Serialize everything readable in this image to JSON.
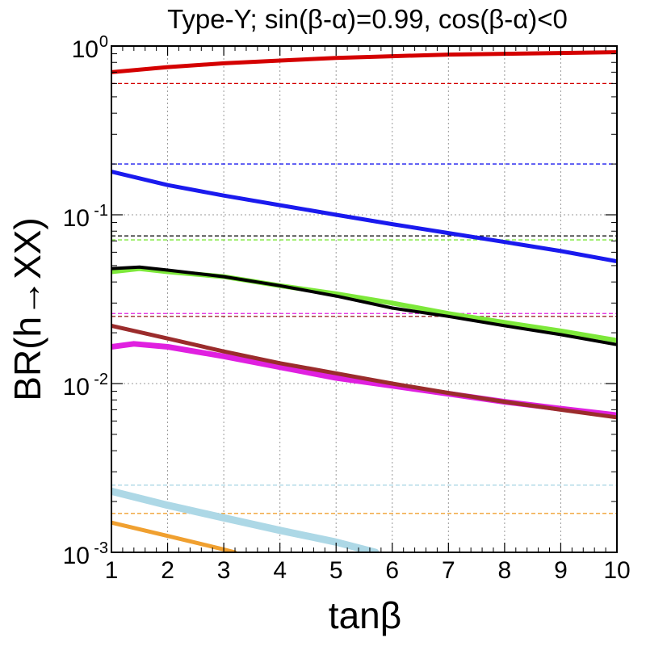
{
  "chart_data": {
    "type": "scatter",
    "title": "Type-Y; sin(β-α)=0.99, cos(β-α)<0",
    "xlabel": "tanβ",
    "ylabel": "BR(h→XX)",
    "xlim": [
      1,
      10
    ],
    "ylim": [
      0.001,
      1
    ],
    "yscale": "log",
    "grid": true,
    "x_ticks": [
      "1",
      "2",
      "3",
      "4",
      "5",
      "6",
      "7",
      "8",
      "9",
      "10"
    ],
    "y_ticks": [
      {
        "base": "10",
        "exp": "-3"
      },
      {
        "base": "10",
        "exp": "-2"
      },
      {
        "base": "10",
        "exp": "-1"
      },
      {
        "base": "10",
        "exp": "0"
      }
    ],
    "series": [
      {
        "name": "red",
        "color": "#d40000",
        "x": [
          1,
          2,
          3,
          4,
          5,
          6,
          7,
          8,
          9,
          10
        ],
        "y": [
          0.7,
          0.75,
          0.79,
          0.82,
          0.85,
          0.87,
          0.89,
          0.9,
          0.91,
          0.92
        ],
        "sm_reference": 0.6
      },
      {
        "name": "blue",
        "color": "#1a1aee",
        "x": [
          1,
          2,
          3,
          4,
          5,
          6,
          7,
          8,
          9,
          10
        ],
        "y": [
          0.18,
          0.15,
          0.13,
          0.114,
          0.1,
          0.088,
          0.078,
          0.069,
          0.061,
          0.053
        ],
        "sm_reference": 0.2
      },
      {
        "name": "black",
        "color": "#000000",
        "x": [
          1,
          1.5,
          2,
          3,
          4,
          5,
          6,
          7,
          8,
          9,
          10
        ],
        "y": [
          0.048,
          0.049,
          0.047,
          0.043,
          0.038,
          0.033,
          0.028,
          0.025,
          0.022,
          0.0195,
          0.017
        ],
        "sm_reference": 0.075
      },
      {
        "name": "green",
        "color": "#7de83a",
        "x": [
          1,
          1.5,
          2,
          3,
          4,
          5,
          6,
          7,
          8,
          9,
          10
        ],
        "y": [
          0.046,
          0.048,
          0.046,
          0.043,
          0.038,
          0.034,
          0.03,
          0.026,
          0.023,
          0.0205,
          0.018
        ],
        "sm_reference": 0.071
      },
      {
        "name": "magenta",
        "color": "#e020e0",
        "x": [
          1,
          1.4,
          2,
          3,
          4,
          5,
          6,
          7,
          8,
          9,
          10
        ],
        "y": [
          0.0165,
          0.0172,
          0.0165,
          0.0145,
          0.0125,
          0.0108,
          0.0097,
          0.0087,
          0.0078,
          0.0071,
          0.0065
        ],
        "sm_reference": 0.026
      },
      {
        "name": "brown",
        "color": "#9b2c2c",
        "x": [
          1,
          2,
          3,
          4,
          5,
          6,
          7,
          8,
          9,
          10
        ],
        "y": [
          0.022,
          0.0185,
          0.0155,
          0.0132,
          0.0115,
          0.01,
          0.0088,
          0.0078,
          0.007,
          0.0063
        ],
        "sm_reference": 0.025
      },
      {
        "name": "lightblue",
        "color": "#add8e6",
        "x": [
          1,
          2,
          3,
          4,
          5,
          5.7
        ],
        "y": [
          0.0023,
          0.0019,
          0.0016,
          0.00135,
          0.00115,
          0.001
        ],
        "sm_reference": 0.0025
      },
      {
        "name": "orange",
        "color": "#f0a030",
        "x": [
          1,
          2,
          3,
          3.2
        ],
        "y": [
          0.0015,
          0.00125,
          0.00104,
          0.001
        ],
        "sm_reference": 0.0017
      }
    ]
  }
}
